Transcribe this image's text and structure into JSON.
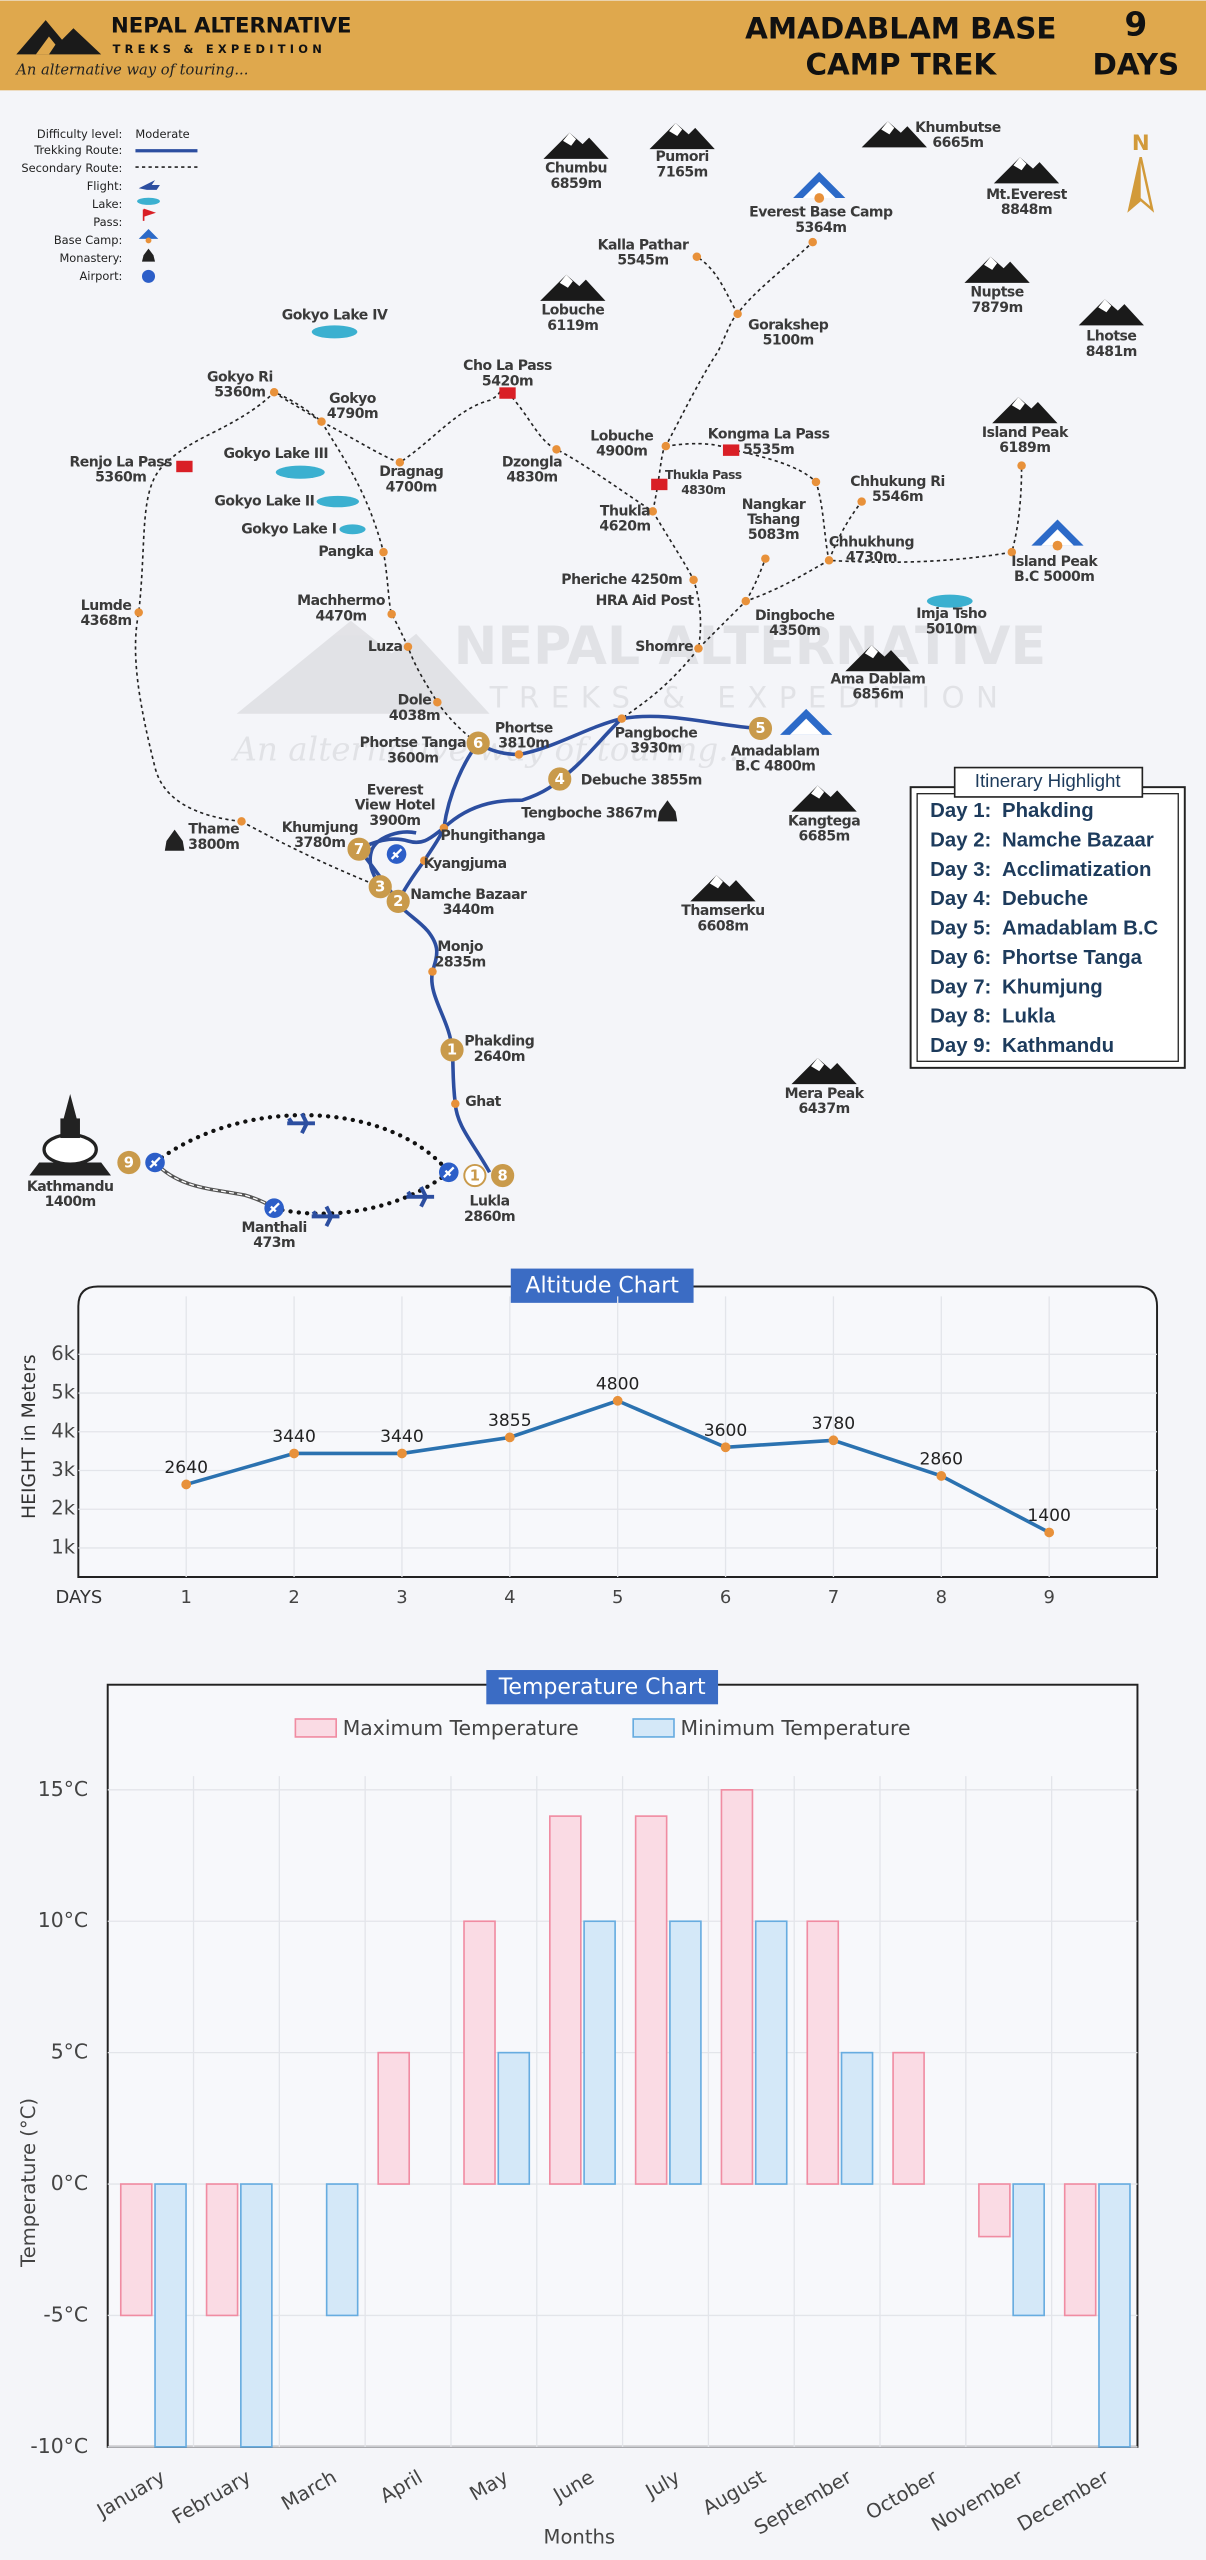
{
  "header": {
    "brand": "NEPAL ALTERNATIVE",
    "brand_sub": "TREKS & EXPEDITION",
    "tagline": "An alternative way of touring...",
    "title_lines": [
      "AMADABLAM BASE",
      "CAMP TREK"
    ],
    "days_count": 9,
    "days_label": "DAYS"
  },
  "legend": {
    "difficulty_label": "Difficulty level:",
    "difficulty": "Moderate",
    "items": [
      "Trekking Route:",
      "Secondary Route:",
      "Flight:",
      "Lake:",
      "Pass:",
      "Base Camp:",
      "Monastery:",
      "Airport:"
    ]
  },
  "compass": "N",
  "map": {
    "places": [
      {
        "lines": [
          "Chumbu",
          "6859m"
        ]
      },
      {
        "lines": [
          "Pumori",
          "7165m"
        ]
      },
      {
        "lines": [
          "Khumbutse",
          "6665m"
        ]
      },
      {
        "lines": [
          "Everest Base Camp",
          "5364m"
        ]
      },
      {
        "lines": [
          "Mt.Everest",
          "8848m"
        ]
      },
      {
        "lines": [
          "Kalla Pathar",
          "5545m"
        ]
      },
      {
        "lines": [
          "Gorakshep",
          "5100m"
        ]
      },
      {
        "lines": [
          "Nuptse",
          "7879m"
        ]
      },
      {
        "lines": [
          "Lobuche",
          "6119m"
        ]
      },
      {
        "lines": [
          "Lhotse",
          "8481m"
        ]
      },
      {
        "lines": [
          "Gokyo Lake IV"
        ]
      },
      {
        "lines": [
          "Cho La Pass",
          "5420m"
        ]
      },
      {
        "lines": [
          "Gokyo Ri",
          "5360m"
        ]
      },
      {
        "lines": [
          "Gokyo",
          "4790m"
        ]
      },
      {
        "lines": [
          "Island Peak",
          "6189m"
        ]
      },
      {
        "lines": [
          "Renjo La Pass",
          "5360m"
        ]
      },
      {
        "lines": [
          "Gokyo Lake III"
        ]
      },
      {
        "lines": [
          "Dragnag",
          "4700m"
        ]
      },
      {
        "lines": [
          "Dzongla",
          "4830m"
        ]
      },
      {
        "lines": [
          "Lobuche",
          "4900m"
        ]
      },
      {
        "lines": [
          "Kongma La Pass",
          "5535m"
        ]
      },
      {
        "lines": [
          "Thukla Pass",
          "4830m"
        ]
      },
      {
        "lines": [
          "Chhukung Ri",
          "5546m"
        ]
      },
      {
        "lines": [
          "Gokyo Lake II"
        ]
      },
      {
        "lines": [
          "Gokyo Lake I"
        ]
      },
      {
        "lines": [
          "Nangkar",
          "Tshang",
          "5083m"
        ]
      },
      {
        "lines": [
          "Thukla",
          "4620m"
        ]
      },
      {
        "lines": [
          "Chhukhung",
          "4730m"
        ]
      },
      {
        "lines": [
          "Island Peak",
          "B.C 5000m"
        ]
      },
      {
        "lines": [
          "Pangka"
        ]
      },
      {
        "lines": [
          "Lumde",
          "4368m"
        ]
      },
      {
        "lines": [
          "Machhermo",
          "4470m"
        ]
      },
      {
        "lines": [
          "Pheriche 4250m"
        ]
      },
      {
        "lines": [
          "HRA Aid Post"
        ]
      },
      {
        "lines": [
          "Imja Tsho",
          "5010m"
        ]
      },
      {
        "lines": [
          "Dingboche",
          "4350m"
        ]
      },
      {
        "lines": [
          "Shomre"
        ]
      },
      {
        "lines": [
          "Luza"
        ]
      },
      {
        "lines": [
          "Ama Dablam",
          "6856m"
        ]
      },
      {
        "lines": [
          "Dole",
          "4038m"
        ]
      },
      {
        "lines": [
          "Phortse",
          "3810m"
        ]
      },
      {
        "lines": [
          "Pangboche",
          "3930m"
        ]
      },
      {
        "lines": [
          "Amadablam",
          "B.C 4800m"
        ]
      },
      {
        "lines": [
          "Phortse Tanga",
          "3600m"
        ]
      },
      {
        "lines": [
          "Debuche 3855m"
        ]
      },
      {
        "lines": [
          "Everest",
          "View Hotel",
          "3900m"
        ]
      },
      {
        "lines": [
          "Tengboche 3867m"
        ]
      },
      {
        "lines": [
          "Kangtega",
          "6685m"
        ]
      },
      {
        "lines": [
          "Thame",
          "3800m"
        ]
      },
      {
        "lines": [
          "Khumjung",
          "3780m"
        ]
      },
      {
        "lines": [
          "Phungithanga"
        ]
      },
      {
        "lines": [
          "Kyangjuma"
        ]
      },
      {
        "lines": [
          "Namche Bazaar",
          "3440m"
        ]
      },
      {
        "lines": [
          "Thamserku",
          "6608m"
        ]
      },
      {
        "lines": [
          "Monjo",
          "2835m"
        ]
      },
      {
        "lines": [
          "Phakding",
          "2640m"
        ]
      },
      {
        "lines": [
          "Ghat"
        ]
      },
      {
        "lines": [
          "Mera Peak",
          "6437m"
        ]
      },
      {
        "lines": [
          "Kathmandu",
          "1400m"
        ]
      },
      {
        "lines": [
          "Lukla",
          "2860m"
        ]
      },
      {
        "lines": [
          "Manthali",
          "473m"
        ]
      }
    ],
    "day_markers": [
      1,
      2,
      3,
      4,
      5,
      6,
      7,
      8,
      9,
      1
    ]
  },
  "itinerary": {
    "title": "Itinerary Highlight",
    "days": [
      {
        "day": "Day 1:",
        "place": "Phakding"
      },
      {
        "day": "Day 2:",
        "place": "Namche Bazaar"
      },
      {
        "day": "Day 3:",
        "place": "Acclimatization"
      },
      {
        "day": "Day 4:",
        "place": "Debuche"
      },
      {
        "day": "Day 5:",
        "place": "Amadablam B.C"
      },
      {
        "day": "Day 6:",
        "place": "Phortse Tanga"
      },
      {
        "day": "Day 7:",
        "place": "Khumjung"
      },
      {
        "day": "Day 8:",
        "place": "Lukla"
      },
      {
        "day": "Day 9:",
        "place": "Kathmandu"
      }
    ]
  },
  "chart_data": [
    {
      "type": "line",
      "title": "Altitude Chart",
      "y_label": "HEIGHT in Meters",
      "x_label": "DAYS",
      "x": [
        1,
        2,
        3,
        4,
        5,
        6,
        7,
        8,
        9
      ],
      "xlim": [
        0,
        10
      ],
      "xticks": [
        1,
        2,
        3,
        4,
        5,
        6,
        7,
        8,
        9
      ],
      "values": [
        2640,
        3440,
        3440,
        3855,
        4800,
        3600,
        3780,
        2860,
        1400
      ],
      "ylim": [
        250,
        7750
      ],
      "yticks": [
        {
          "value": 1000,
          "label": "1k"
        },
        {
          "value": 2000,
          "label": "2k"
        },
        {
          "value": 3000,
          "label": "3k"
        },
        {
          "value": 4000,
          "label": "4k"
        },
        {
          "value": 5000,
          "label": "5k"
        },
        {
          "value": 6000,
          "label": "6k"
        }
      ],
      "color": "#2b72b0",
      "marker_color": "#e8913a",
      "grid": true
    },
    {
      "type": "bar",
      "title": "Temperature Chart",
      "y_label": "Temperature (°C)",
      "x_label": "Months",
      "categories": [
        "January",
        "February",
        "March",
        "April",
        "May",
        "June",
        "July",
        "August",
        "September",
        "October",
        "November",
        "December"
      ],
      "series": [
        {
          "name": "Maximum Temperature",
          "color": "#fadbe4",
          "stroke": "#f08ca2",
          "values": [
            -5,
            -5,
            0,
            5,
            10,
            14,
            14,
            15,
            10,
            5,
            -2,
            -5
          ]
        },
        {
          "name": "Minimum Temperature",
          "color": "#d4e8f8",
          "stroke": "#67ace0",
          "values": [
            -10,
            -10,
            -5,
            0,
            5,
            10,
            10,
            10,
            5,
            0,
            -5,
            -10
          ]
        }
      ],
      "ylim": [
        -10,
        19
      ],
      "yticks": [
        {
          "value": -10,
          "label": "-10°C"
        },
        {
          "value": -5,
          "label": "-5°C"
        },
        {
          "value": 0,
          "label": "0°C"
        },
        {
          "value": 5,
          "label": "5°C"
        },
        {
          "value": 10,
          "label": "10°C"
        },
        {
          "value": 15,
          "label": "15°C"
        }
      ],
      "grid": true
    }
  ]
}
